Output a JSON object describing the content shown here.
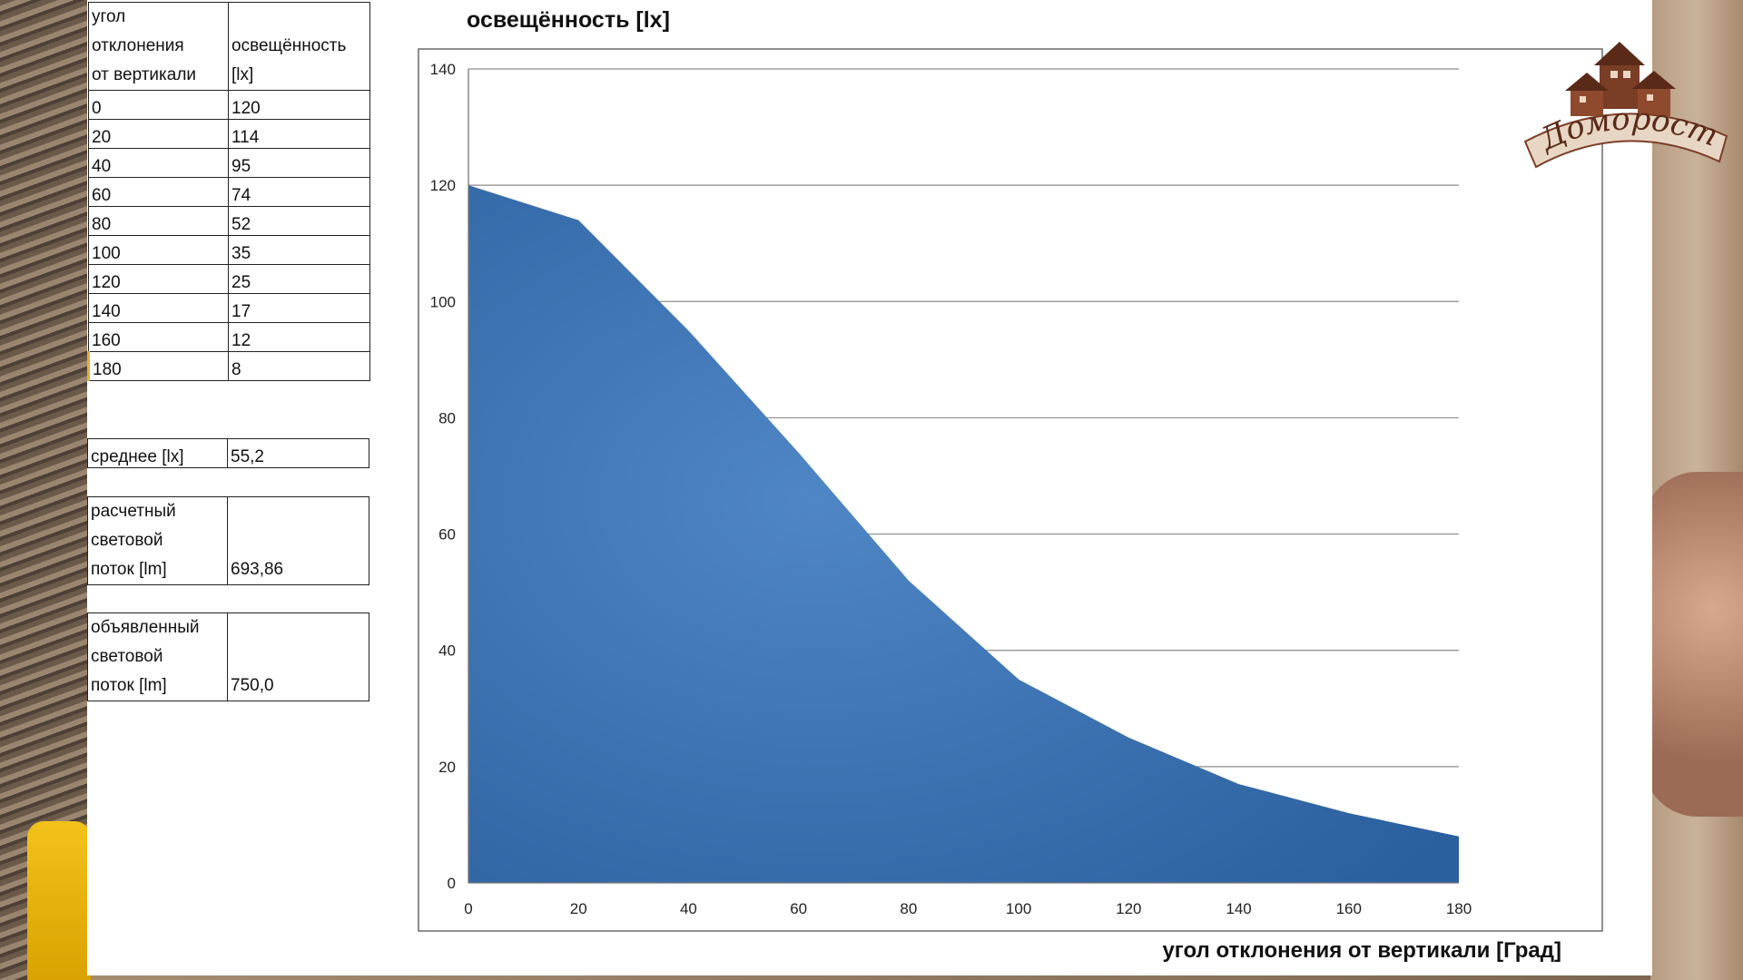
{
  "table": {
    "header": {
      "col1": [
        "угол",
        "отклонения",
        "от вертикали"
      ],
      "col2": [
        "освещённость",
        "[lx]"
      ]
    },
    "rows": [
      [
        "0",
        "120"
      ],
      [
        "20",
        "114"
      ],
      [
        "40",
        "95"
      ],
      [
        "60",
        "74"
      ],
      [
        "80",
        "52"
      ],
      [
        "100",
        "35"
      ],
      [
        "120",
        "25"
      ],
      [
        "140",
        "17"
      ],
      [
        "160",
        "12"
      ],
      [
        "180",
        "8"
      ]
    ]
  },
  "summary": {
    "average_label": "среднее  [lx]",
    "average_value": "55,2",
    "calc_label": [
      "расчетный",
      "световой",
      "поток  [lm]"
    ],
    "calc_value": "693,86",
    "declared_label": [
      "объявленный",
      "световой",
      "поток  [lm]"
    ],
    "declared_value": "750,0"
  },
  "logo_text": "Домоpост",
  "chart_data": {
    "type": "area",
    "title": "освещённость [lx]",
    "xlabel": "угол отклонения от вертикали  [Град]",
    "ylabel": "",
    "x": [
      0,
      20,
      40,
      60,
      80,
      100,
      120,
      140,
      160,
      180
    ],
    "series": [
      {
        "values": [
          120,
          114,
          95,
          74,
          52,
          35,
          25,
          17,
          12,
          8
        ],
        "color": "#3a6fb0"
      }
    ],
    "xlim": [
      0,
      180
    ],
    "ylim": [
      0,
      140
    ],
    "xticks": [
      0,
      20,
      40,
      60,
      80,
      100,
      120,
      140,
      160,
      180
    ],
    "yticks": [
      0,
      20,
      40,
      60,
      80,
      100,
      120,
      140
    ],
    "grid": "horizontal",
    "legend": "none"
  }
}
